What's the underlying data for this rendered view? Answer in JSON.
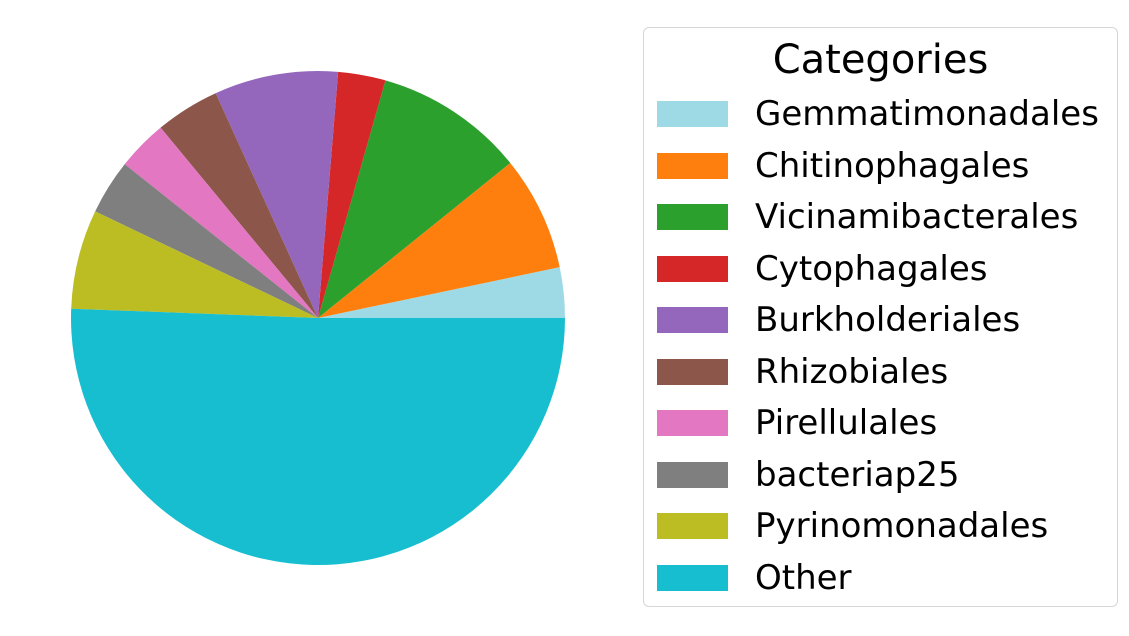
{
  "chart_data": {
    "type": "pie",
    "legend_title": "Categories",
    "legend_position": "right",
    "start_angle_deg": 0,
    "direction": "counterclockwise",
    "slices": [
      {
        "label": "Gemmatimonadales",
        "value": 3.3,
        "color": "#9edae5"
      },
      {
        "label": "Chitinophagales",
        "value": 7.5,
        "color": "#ff7f0e"
      },
      {
        "label": "Vicinamibacterales",
        "value": 9.8,
        "color": "#2ca02c"
      },
      {
        "label": "Cytophagales",
        "value": 3.1,
        "color": "#d62728"
      },
      {
        "label": "Burkholderiales",
        "value": 8.1,
        "color": "#9467bd"
      },
      {
        "label": "Rhizobiales",
        "value": 4.2,
        "color": "#8c564b"
      },
      {
        "label": "Pirellulales",
        "value": 3.3,
        "color": "#e377c2"
      },
      {
        "label": "bacteriap25",
        "value": 3.6,
        "color": "#7f7f7f"
      },
      {
        "label": "Pyrinomonadales",
        "value": 6.5,
        "color": "#bcbd22"
      },
      {
        "label": "Other",
        "value": 50.6,
        "color": "#17becf"
      }
    ]
  }
}
